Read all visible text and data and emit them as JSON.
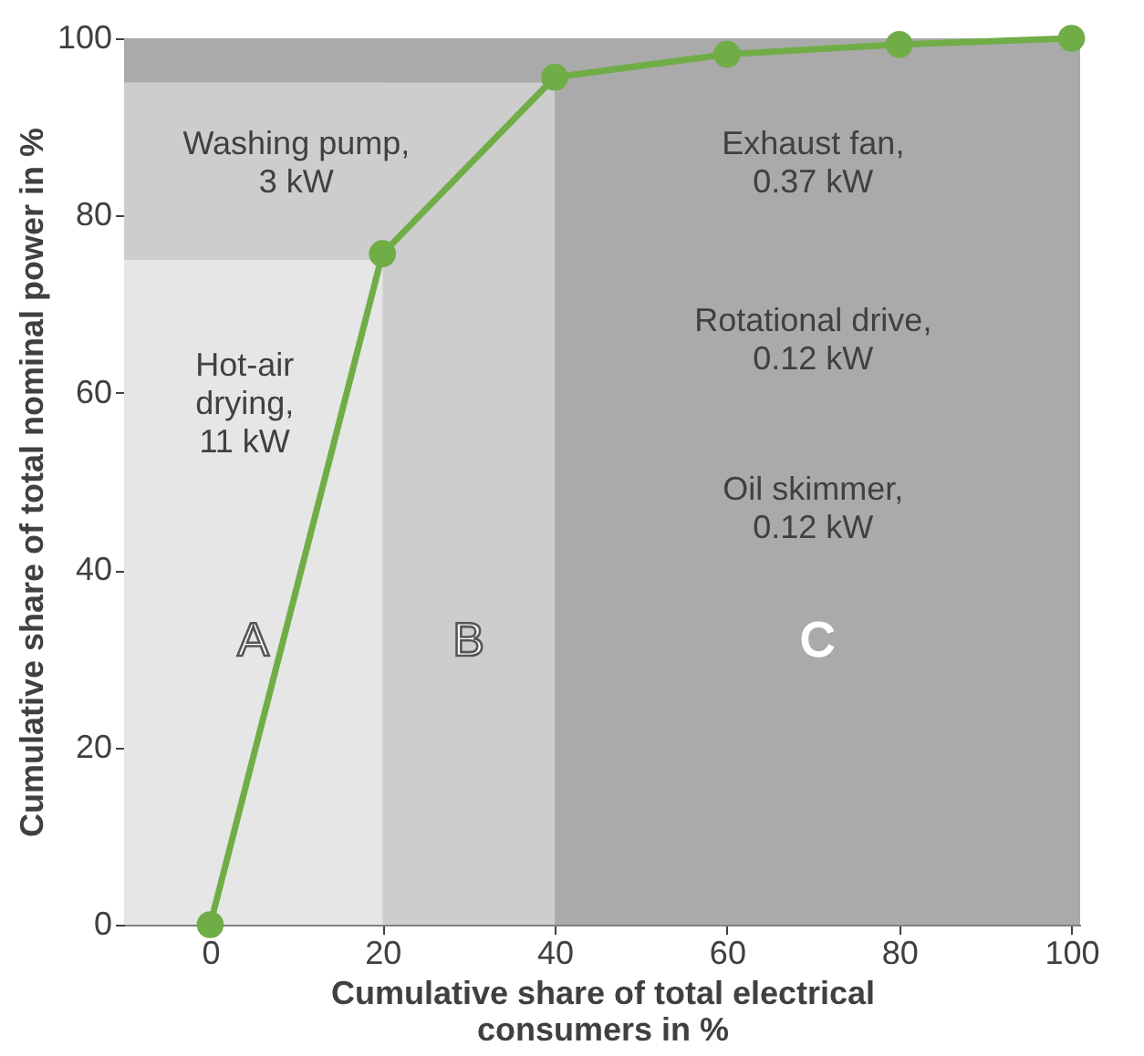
{
  "chart_data": {
    "type": "line",
    "x": [
      0,
      20,
      40,
      60,
      80,
      100
    ],
    "series": [
      {
        "color": "#70ad47",
        "values": [
          0,
          75.7,
          95.6,
          98.2,
          99.3,
          100
        ]
      }
    ],
    "xlim": [
      -10,
      101
    ],
    "ylim": [
      0,
      100
    ],
    "xticks": [
      0,
      20,
      40,
      60,
      80,
      100
    ],
    "yticks": [
      0,
      20,
      40,
      60,
      80,
      100
    ],
    "xlabel": "Cumulative share of total electrical consumers in %",
    "ylabel": "Cumulative share of total nominal power in %",
    "bands": [
      {
        "axis": "x",
        "from": -10,
        "to": 20,
        "label": "A",
        "color": "#e6e6e6"
      },
      {
        "axis": "x",
        "from": 20,
        "to": 40,
        "label": "B",
        "color": "#cdcdcd"
      },
      {
        "axis": "x",
        "from": 40,
        "to": 101,
        "label": "C",
        "color": "#aaaaaa"
      },
      {
        "axis": "y",
        "from": 75,
        "to": 95,
        "color": "#cdcdcd"
      },
      {
        "axis": "y",
        "from": 95,
        "to": 100,
        "color": "#aaaaaa"
      }
    ],
    "annotations": [
      "Washing pump,\n3 kW",
      "Hot-air\ndrying,\n11 kW",
      "Exhaust fan,\n0.37 kW",
      "Rotational drive,\n0.12 kW",
      "Oil skimmer,\n0.12 kW"
    ],
    "marker": "circle",
    "line_style": "solid",
    "grid": false
  }
}
